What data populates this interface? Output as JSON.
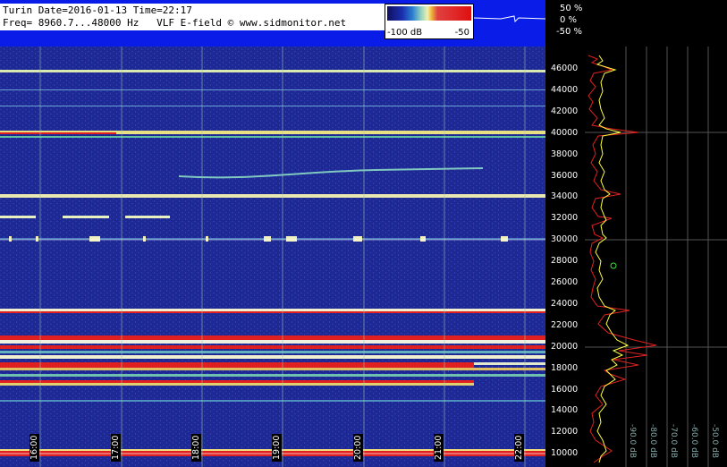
{
  "header": {
    "line1": "Turin Date=2016-01-13 Time=22:17",
    "line2": "Freq= 8960.7...48000 Hz   VLF E-field © www.sidmonitor.net"
  },
  "colorbar": {
    "min_label": "-100 dB",
    "max_label": "-50"
  },
  "percent_scale": [
    "50 %",
    "0 %",
    "-50 %"
  ],
  "frequency_ticks": [
    "46000",
    "44000",
    "42000",
    "40000",
    "38000",
    "36000",
    "34000",
    "32000",
    "30000",
    "28000",
    "26000",
    "24000",
    "22000",
    "20000",
    "18000",
    "16000",
    "14000",
    "12000",
    "10000"
  ],
  "time_ticks": [
    "16:00",
    "17:00",
    "18:00",
    "19:00",
    "20:00",
    "21:00",
    "22:00"
  ],
  "db_ticks": [
    "-90.0 dB",
    "-80.0 dB",
    "-70.0 dB",
    "-60.0 dB",
    "-50.0 dB"
  ],
  "colors": {
    "header_bg": "#0a1de8",
    "spectrogram_bg": "#202a9a",
    "spectrum_line_avg": "#ffff40",
    "spectrum_line_peak": "#e02020"
  }
}
